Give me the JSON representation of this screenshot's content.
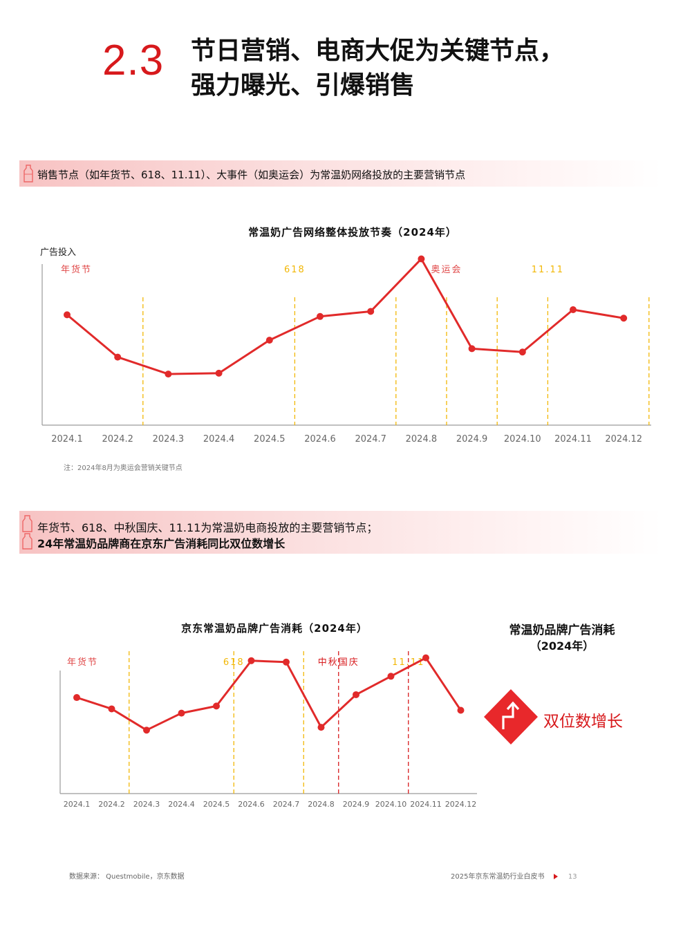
{
  "header": {
    "section_number": "2.3",
    "title_line1": "节日营销、电商大促为关键节点，",
    "title_line2": "强力曝光、引爆销售"
  },
  "banner1": {
    "text": "销售节点（如年货节、618、11.11）、大事件（如奥运会）为常温奶网络投放的主要营销节点"
  },
  "banner2": {
    "line1": "年货节、618、中秋国庆、11.11为常温奶电商投放的主要营销节点；",
    "line2": "24年常温奶品牌商在京东广告消耗同比双位数增长"
  },
  "colors": {
    "accent": "#d7191c",
    "line": "#e12a2a",
    "marker_gold": "#f2b705",
    "marker_red": "#d7191c",
    "axis": "#9a9a9a"
  },
  "chart_data": [
    {
      "type": "line",
      "title": "常温奶广告网络整体投放节奏（2024年）",
      "ylabel": "广告投入",
      "xlabel": "",
      "categories": [
        "2024.1",
        "2024.2",
        "2024.3",
        "2024.4",
        "2024.5",
        "2024.6",
        "2024.7",
        "2024.8",
        "2024.9",
        "2024.10",
        "2024.11",
        "2024.12"
      ],
      "values": [
        57,
        32,
        22,
        22.5,
        42,
        56,
        59,
        90,
        37,
        35,
        60,
        55
      ],
      "ylim": [
        0,
        100
      ],
      "grid": false,
      "event_markers": [
        {
          "label": "年货节",
          "after_index": 1,
          "color": "#e04848"
        },
        {
          "label": "618",
          "after_index": 4,
          "color": "#f2b705"
        },
        {
          "label": "",
          "after_index": 6,
          "color": "#f2b705"
        },
        {
          "label": "奥运会",
          "after_index": 7,
          "color": "#e04848"
        },
        {
          "label": "",
          "after_index": 8,
          "color": "#f2b705"
        },
        {
          "label": "11.11",
          "after_index": 9,
          "color": "#f2b705"
        },
        {
          "label": "",
          "after_index": 11,
          "color": "#f2b705"
        }
      ],
      "note": "注：2024年8月为奥运会营销关键节点"
    },
    {
      "type": "line",
      "title": "京东常温奶品牌广告消耗（2024年）",
      "xlabel": "",
      "ylabel": "",
      "categories": [
        "2024.1",
        "2024.2",
        "2024.3",
        "2024.4",
        "2024.5",
        "2024.6",
        "2024.7",
        "2024.8",
        "2024.9",
        "2024.10",
        "2024.11",
        "2024.12"
      ],
      "values": [
        59,
        51,
        36,
        48,
        53,
        85,
        84,
        38,
        61,
        74,
        87,
        50
      ],
      "ylim": [
        0,
        100
      ],
      "grid": false,
      "event_markers": [
        {
          "label": "年货节",
          "after_index": 1,
          "color": "#e04848"
        },
        {
          "label": "618",
          "after_index": 4,
          "color": "#f2b705"
        },
        {
          "label": "",
          "after_index": 6,
          "color": "#f2b705"
        },
        {
          "label": "中秋国庆",
          "after_index": 7,
          "color": "#d7191c",
          "dash_red": true
        },
        {
          "label": "11.11",
          "after_index": 9,
          "color": "#f2b705",
          "dash_red": true
        }
      ]
    }
  ],
  "side_panel": {
    "title_line1": "常温奶品牌广告消耗",
    "title_line2": "（2024年）",
    "growth_label": "双位数增长",
    "icon": "arrow-up-diamond-icon"
  },
  "footer": {
    "source": "数据来源： Questmobile，京东数据",
    "report": "2025年京东常温奶行业白皮书",
    "page": "13"
  }
}
